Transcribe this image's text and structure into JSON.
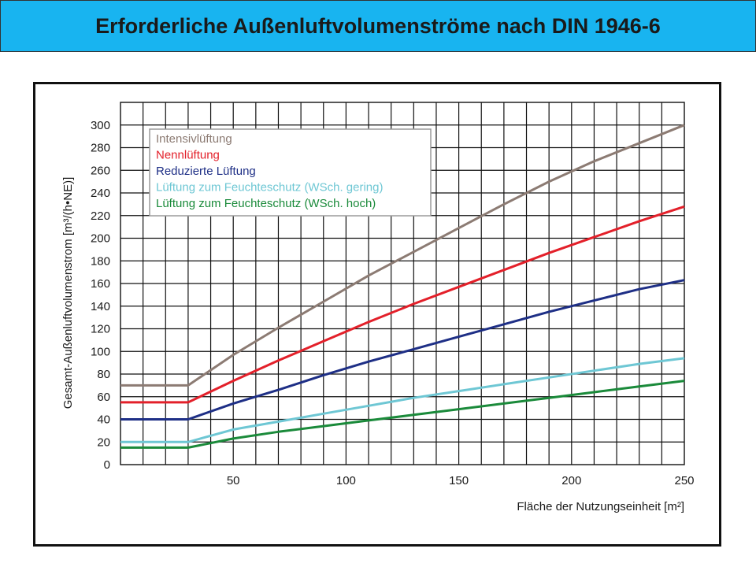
{
  "title": "Erforderliche Außenluftvolumenströme nach DIN 1946-6",
  "chart_data": {
    "type": "line",
    "xlabel": "Fläche der Nutzungseinheit [m²]",
    "ylabel": "Gesamt-Außenluftvolumenstrom [m³/(h•NE)]",
    "xlim": [
      0,
      250
    ],
    "ylim": [
      0,
      320
    ],
    "xticks": [
      50,
      100,
      150,
      200,
      250
    ],
    "yticks": [
      0,
      20,
      40,
      60,
      80,
      100,
      120,
      140,
      160,
      180,
      200,
      220,
      240,
      260,
      280,
      300
    ],
    "grid": true,
    "legend_position": "top-left",
    "series": [
      {
        "name": "Intensivlüftung",
        "color": "#8c7b73",
        "points": [
          [
            0,
            70
          ],
          [
            30,
            70
          ],
          [
            50,
            97
          ],
          [
            70,
            121
          ],
          [
            90,
            144
          ],
          [
            110,
            167
          ],
          [
            130,
            188
          ],
          [
            150,
            209
          ],
          [
            170,
            230
          ],
          [
            190,
            250
          ],
          [
            210,
            268
          ],
          [
            230,
            284
          ],
          [
            250,
            300
          ]
        ]
      },
      {
        "name": "Nennlüftung",
        "color": "#e3202a",
        "points": [
          [
            0,
            55
          ],
          [
            30,
            55
          ],
          [
            50,
            74
          ],
          [
            70,
            92
          ],
          [
            90,
            109
          ],
          [
            110,
            126
          ],
          [
            130,
            142
          ],
          [
            150,
            157
          ],
          [
            170,
            172
          ],
          [
            190,
            187
          ],
          [
            210,
            201
          ],
          [
            230,
            215
          ],
          [
            250,
            228
          ]
        ]
      },
      {
        "name": "Reduzierte Lüftung",
        "color": "#1e2f86",
        "points": [
          [
            0,
            40
          ],
          [
            30,
            40
          ],
          [
            50,
            54
          ],
          [
            70,
            66
          ],
          [
            90,
            79
          ],
          [
            110,
            91
          ],
          [
            130,
            102
          ],
          [
            150,
            113
          ],
          [
            170,
            124
          ],
          [
            190,
            135
          ],
          [
            210,
            145
          ],
          [
            230,
            155
          ],
          [
            250,
            163
          ]
        ]
      },
      {
        "name": "Lüftung zum Feuchteschutz (WSch. gering)",
        "color": "#6ec7d4",
        "points": [
          [
            0,
            20
          ],
          [
            30,
            20
          ],
          [
            50,
            31
          ],
          [
            70,
            38
          ],
          [
            90,
            45
          ],
          [
            110,
            52
          ],
          [
            130,
            59
          ],
          [
            150,
            65
          ],
          [
            170,
            71
          ],
          [
            190,
            77
          ],
          [
            210,
            83
          ],
          [
            230,
            89
          ],
          [
            250,
            94
          ]
        ]
      },
      {
        "name": "Lüftung zum Feuchteschutz (WSch. hoch)",
        "color": "#1a8a3a",
        "points": [
          [
            0,
            15
          ],
          [
            30,
            15
          ],
          [
            50,
            23
          ],
          [
            70,
            29
          ],
          [
            90,
            34
          ],
          [
            110,
            39
          ],
          [
            130,
            44
          ],
          [
            150,
            49
          ],
          [
            170,
            54
          ],
          [
            190,
            59
          ],
          [
            210,
            64
          ],
          [
            230,
            69
          ],
          [
            250,
            74
          ]
        ]
      }
    ]
  }
}
